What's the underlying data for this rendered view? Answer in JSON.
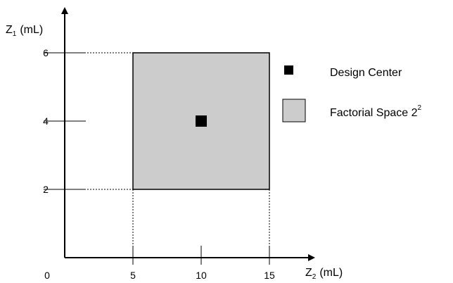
{
  "chart_data": {
    "type": "scatter",
    "title": "",
    "xlabel": {
      "main": "Z",
      "sub": "2",
      "unit": "(mL)"
    },
    "ylabel": {
      "main": "Z",
      "sub": "1",
      "unit": "(mL)"
    },
    "xlim": [
      0,
      18
    ],
    "ylim": [
      0,
      7
    ],
    "x_origin_label": "0",
    "x_ticks": [
      {
        "value": 5,
        "label": "5"
      },
      {
        "value": 10,
        "label": "10"
      },
      {
        "value": 15,
        "label": "15"
      }
    ],
    "y_ticks": [
      {
        "value": 2,
        "label": "2"
      },
      {
        "value": 4,
        "label": "4"
      },
      {
        "value": 6,
        "label": "6"
      }
    ],
    "factorial_space": {
      "x_range": [
        5,
        15
      ],
      "y_range": [
        2,
        6
      ],
      "fill": "#cccccc"
    },
    "design_center": {
      "x": 10,
      "y": 4,
      "color": "#000000"
    },
    "legend": {
      "position": "right",
      "items": [
        {
          "label": "Design Center",
          "symbol": "filled-square"
        },
        {
          "label": "Factorial Space 2",
          "superscript": "2",
          "symbol": "gray-square"
        }
      ]
    }
  }
}
